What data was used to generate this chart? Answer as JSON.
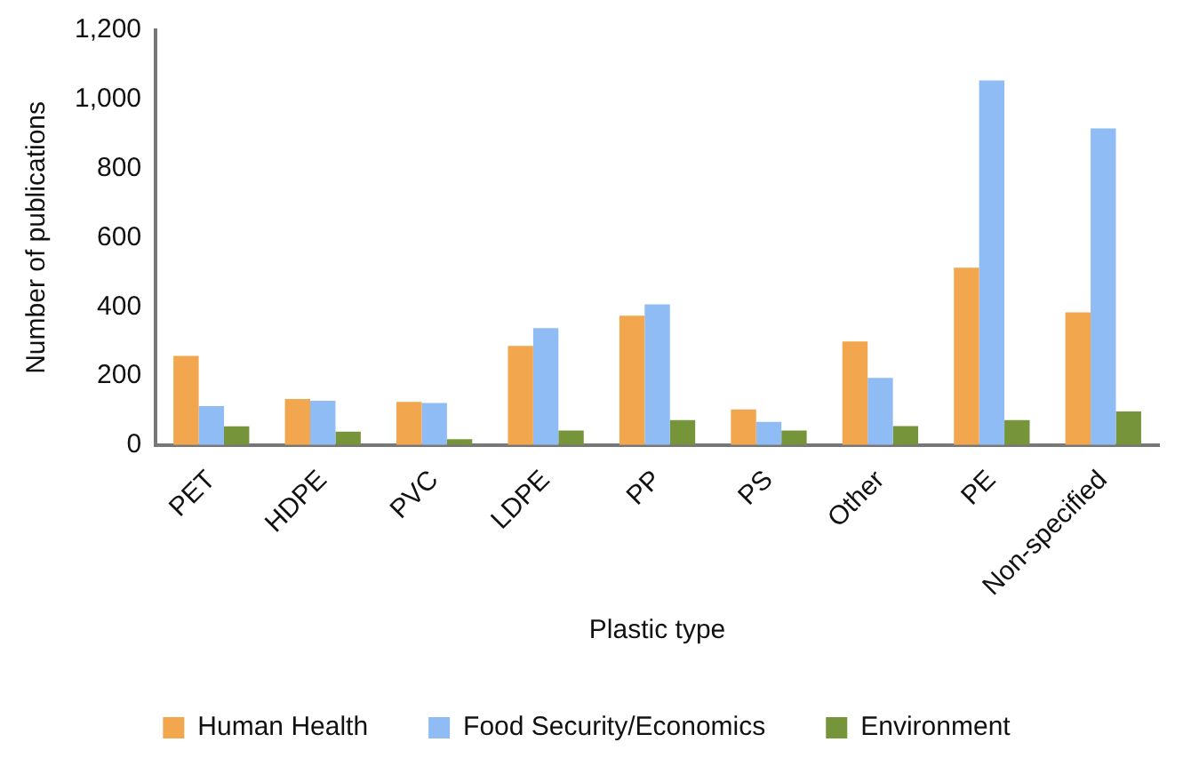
{
  "chart_data": {
    "type": "bar",
    "xlabel": "Plastic type",
    "ylabel": "Number of publications",
    "categories": [
      "PET",
      "HDPE",
      "PVC",
      "LDPE",
      "PP",
      "PS",
      "Other",
      "PE",
      "Non-specified"
    ],
    "series": [
      {
        "name": "Human Health",
        "color": "#f2a74e",
        "values": [
          258,
          133,
          125,
          287,
          374,
          103,
          300,
          513,
          384
        ]
      },
      {
        "name": "Food Security/Economics",
        "color": "#8fbcf5",
        "values": [
          113,
          128,
          122,
          338,
          407,
          67,
          194,
          1055,
          916
        ]
      },
      {
        "name": "Environment",
        "color": "#76943a",
        "values": [
          54,
          39,
          17,
          42,
          72,
          42,
          55,
          72,
          97
        ]
      }
    ],
    "ylim": [
      0,
      1200
    ],
    "yticks": [
      0,
      {
        "value": 200,
        "label": "200"
      },
      {
        "value": 400,
        "label": "400"
      },
      {
        "value": 600,
        "label": "600"
      },
      {
        "value": 800,
        "label": "800"
      },
      {
        "value": 1000,
        "label": "1,000"
      },
      {
        "value": 1200,
        "label": "1,200"
      }
    ],
    "grid": false,
    "legend": "bottom"
  }
}
